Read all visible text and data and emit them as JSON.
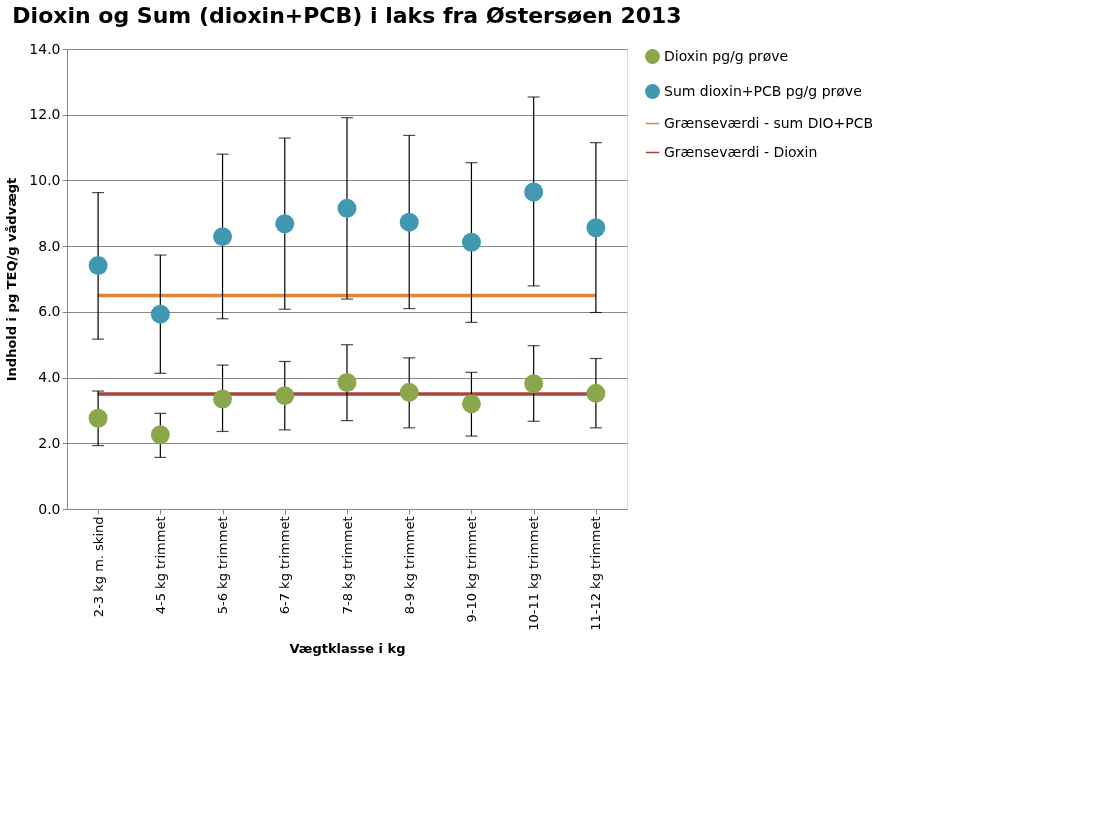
{
  "chart_data": {
    "type": "scatter",
    "title": "Dioxin og Sum (dioxin+PCB) i laks fra Østersøen 2013",
    "xlabel": "Vægtklasse i kg",
    "ylabel": "Indhold i pg TEQ/g vådvægt",
    "categories": [
      "2-3 kg m. skind",
      "4-5 kg trimmet",
      "5-6 kg trimmet",
      "6-7 kg trimmet",
      "7-8 kg trimmet",
      "8-9 kg trimmet",
      "9-10 kg trimmet",
      "10-11 kg trimmet",
      "11-12 kg trimmet"
    ],
    "series": [
      {
        "name": "Dioxin pg/g prøve",
        "color": "#8aa84b",
        "values": [
          2.76,
          2.26,
          3.35,
          3.45,
          3.85,
          3.55,
          3.2,
          3.81,
          3.52
        ],
        "errors": [
          [
            1.93,
            3.59
          ],
          [
            1.57,
            2.91
          ],
          [
            2.36,
            4.38
          ],
          [
            2.41,
            4.49
          ],
          [
            2.69,
            5.0
          ],
          [
            2.47,
            4.6
          ],
          [
            2.22,
            4.16
          ],
          [
            2.67,
            4.97
          ],
          [
            2.47,
            4.58
          ]
        ]
      },
      {
        "name": "Sum dioxin+PCB pg/g prøve",
        "color": "#4298b0",
        "values": [
          7.41,
          5.93,
          8.29,
          8.68,
          9.15,
          8.73,
          8.12,
          9.65,
          8.56
        ],
        "errors": [
          [
            5.17,
            9.63
          ],
          [
            4.13,
            7.73
          ],
          [
            5.79,
            10.8
          ],
          [
            6.08,
            11.29
          ],
          [
            6.39,
            11.91
          ],
          [
            6.1,
            11.37
          ],
          [
            5.68,
            10.54
          ],
          [
            6.79,
            12.54
          ],
          [
            5.98,
            11.15
          ]
        ]
      }
    ],
    "ref_lines": [
      {
        "axis": "y",
        "value": 6.5,
        "label": "Grænseværdi - sum DIO+PCB",
        "color": "#e0843a"
      },
      {
        "axis": "y",
        "value": 3.5,
        "label": "Grænseværdi - Dioxin",
        "color": "#a94442"
      }
    ],
    "ylim": [
      0,
      14
    ],
    "yticks": [
      {
        "value": 0,
        "label": "0.0"
      },
      {
        "value": 2,
        "label": "2.0"
      },
      {
        "value": 4,
        "label": "4.0"
      },
      {
        "value": 6,
        "label": "6.0"
      },
      {
        "value": 8,
        "label": "8.0"
      },
      {
        "value": 10,
        "label": "10.0"
      },
      {
        "value": 12,
        "label": "12.0"
      },
      {
        "value": 14,
        "label": "14.0"
      }
    ],
    "grid": "y",
    "legend": "right",
    "marker": "circle"
  }
}
